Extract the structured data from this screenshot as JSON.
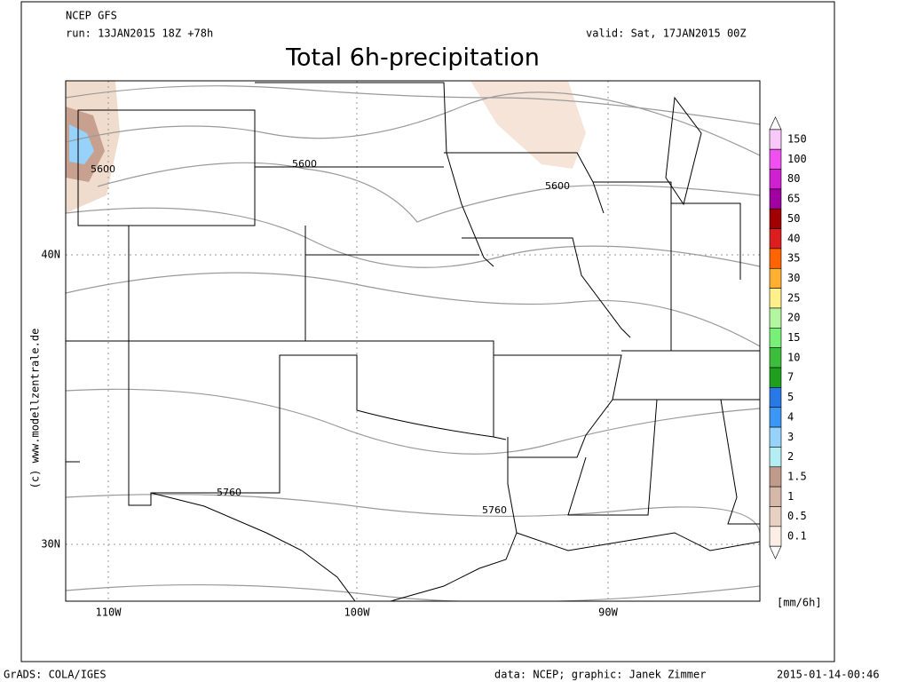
{
  "header": {
    "model": "NCEP GFS",
    "run": "run: 13JAN2015 18Z +78h",
    "valid": "valid: Sat, 17JAN2015 00Z",
    "title": "Total 6h-precipitation"
  },
  "map": {
    "lat_labels": [
      "40N",
      "30N"
    ],
    "lon_labels": [
      "110W",
      "100W",
      "90W"
    ],
    "contour_labels": [
      "5600",
      "5600",
      "5600",
      "5760",
      "5760"
    ],
    "credit": "(c) www.modellzentrale.de"
  },
  "legend": {
    "unit": "[mm/6h]",
    "levels": [
      150,
      100,
      80,
      65,
      50,
      40,
      35,
      30,
      25,
      20,
      15,
      10,
      7,
      5,
      4,
      3,
      2,
      1.5,
      1,
      0.5,
      0.1
    ],
    "colors": [
      "#f8c8f8",
      "#f050f0",
      "#d020d0",
      "#a000a0",
      "#a00000",
      "#dc1e1e",
      "#ff6400",
      "#ffb030",
      "#fff08c",
      "#b4f5a0",
      "#78f078",
      "#3cbe3c",
      "#1ea01e",
      "#2878e6",
      "#3c96f5",
      "#96d2fa",
      "#b4eef4",
      "#c09a8a",
      "#d6b8a8",
      "#e8d0c2",
      "#fbeee4"
    ]
  },
  "footer": {
    "left": "GrADS: COLA/IGES",
    "center": "data: NCEP; graphic: Janek Zimmer",
    "right": "2015-01-14-00:46"
  }
}
